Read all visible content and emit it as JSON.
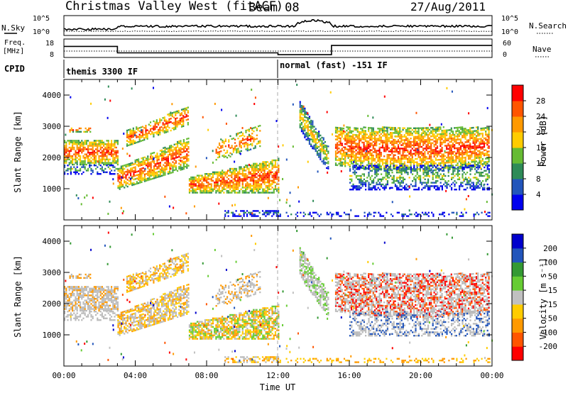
{
  "header": {
    "title": "Christmas Valley West (fitACF)",
    "beam": "Beam 08",
    "date": "27/Aug/2011"
  },
  "status_panels": {
    "nsky_label": "N.Sky",
    "nsearch_label": "N.Search",
    "nsky_ticks": [
      "10^5",
      "10^0"
    ],
    "nsearch_ticks": [
      "10^5",
      "10^0"
    ],
    "freq_label_1": "Freq.",
    "freq_label_2": "[MHz]",
    "freq_ticks": [
      "18",
      "8"
    ],
    "nave_label": "Nave",
    "nave_ticks": [
      "60",
      "0"
    ],
    "cpid_label": "CPID",
    "cpid_segments": [
      {
        "label": "themis 3300 IF",
        "start_hour": 0
      },
      {
        "label": "normal (fast) -151 IF",
        "start_hour": 12
      }
    ],
    "freq_steps": [
      {
        "start_hour": 0,
        "end_hour": 3,
        "value": 14
      },
      {
        "start_hour": 3,
        "end_hour": 12,
        "value": 10.5
      },
      {
        "start_hour": 12,
        "end_hour": 15,
        "value": 9.5
      },
      {
        "start_hour": 15,
        "end_hour": 24,
        "value": 14.5
      }
    ]
  },
  "chart_data": [
    {
      "type": "heatmap",
      "ylabel": "Slant Range [km]",
      "yticks": [
        "1000",
        "2000",
        "3000",
        "4000"
      ],
      "ylim": [
        0,
        4500
      ],
      "xlim": [
        0,
        24
      ],
      "colorbar": {
        "label": "Power [dB]",
        "ticks": [
          "4",
          "8",
          "12",
          "16",
          "20",
          "24",
          "28"
        ],
        "range": [
          0,
          30
        ]
      }
    },
    {
      "type": "heatmap",
      "ylabel": "Slant Range [km]",
      "yticks": [
        "1000",
        "2000",
        "3000",
        "4000"
      ],
      "ylim": [
        0,
        4500
      ],
      "xlim": [
        0,
        24
      ],
      "xlabel": "Time UT",
      "xticks": [
        "00:00",
        "04:00",
        "08:00",
        "12:00",
        "16:00",
        "20:00",
        "00:00"
      ],
      "colorbar": {
        "label": "Velocity [m s⁻¹]",
        "ticks": [
          "200",
          "100",
          "50",
          "15",
          "-15",
          "-50",
          "-100",
          "-200"
        ],
        "range": [
          -250,
          250
        ]
      }
    }
  ],
  "colors": {
    "power_scale": [
      "#0000ee",
      "#2255bb",
      "#2e8b57",
      "#66bb33",
      "#ffcc00",
      "#ff9900",
      "#ff5500",
      "#ff0000"
    ],
    "velocity_scale": [
      "#ff0000",
      "#ff5500",
      "#ff9900",
      "#ffcc00",
      "#c0c0c0",
      "#66cc33",
      "#339933",
      "#2255bb",
      "#0000cc"
    ],
    "ground_scatter": "#bbbbbb"
  }
}
